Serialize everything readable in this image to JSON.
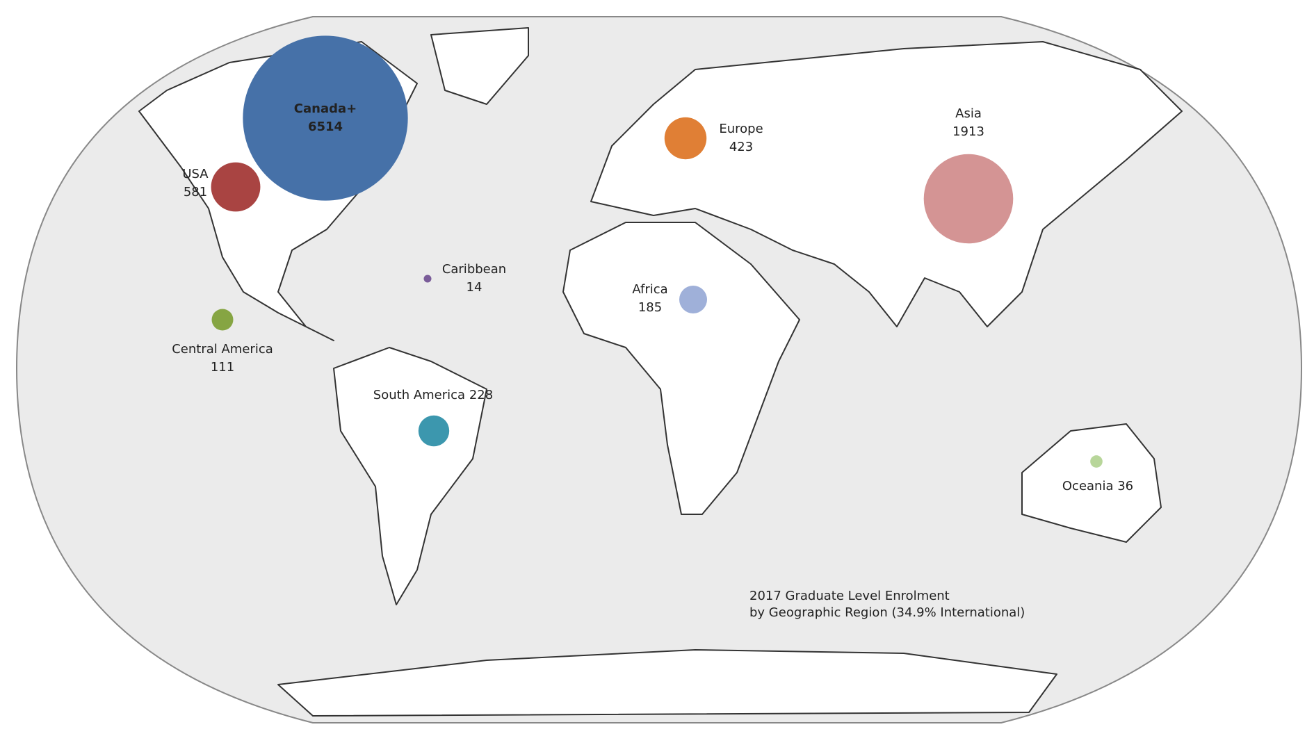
{
  "chart_data": {
    "type": "bubble-map",
    "title": [
      "2017 Graduate Level Enrolment",
      "by Geographic Region (34.9% International)"
    ],
    "regions": [
      {
        "name": "Canada+",
        "value": 6514,
        "color": "#4671a8"
      },
      {
        "name": "USA",
        "value": 581,
        "color": "#a94442"
      },
      {
        "name": "Europe",
        "value": 423,
        "color": "#e07f35"
      },
      {
        "name": "Asia",
        "value": 1913,
        "color": "#d49494"
      },
      {
        "name": "Caribbean",
        "value": 14,
        "color": "#7a5c99"
      },
      {
        "name": "Africa",
        "value": 185,
        "color": "#9fb0d9"
      },
      {
        "name": "Central America",
        "value": 111,
        "color": "#86a543"
      },
      {
        "name": "South America",
        "value": 228,
        "color": "#3c97ae"
      },
      {
        "name": "Oceania",
        "value": 36,
        "color": "#b8d69a"
      }
    ]
  }
}
